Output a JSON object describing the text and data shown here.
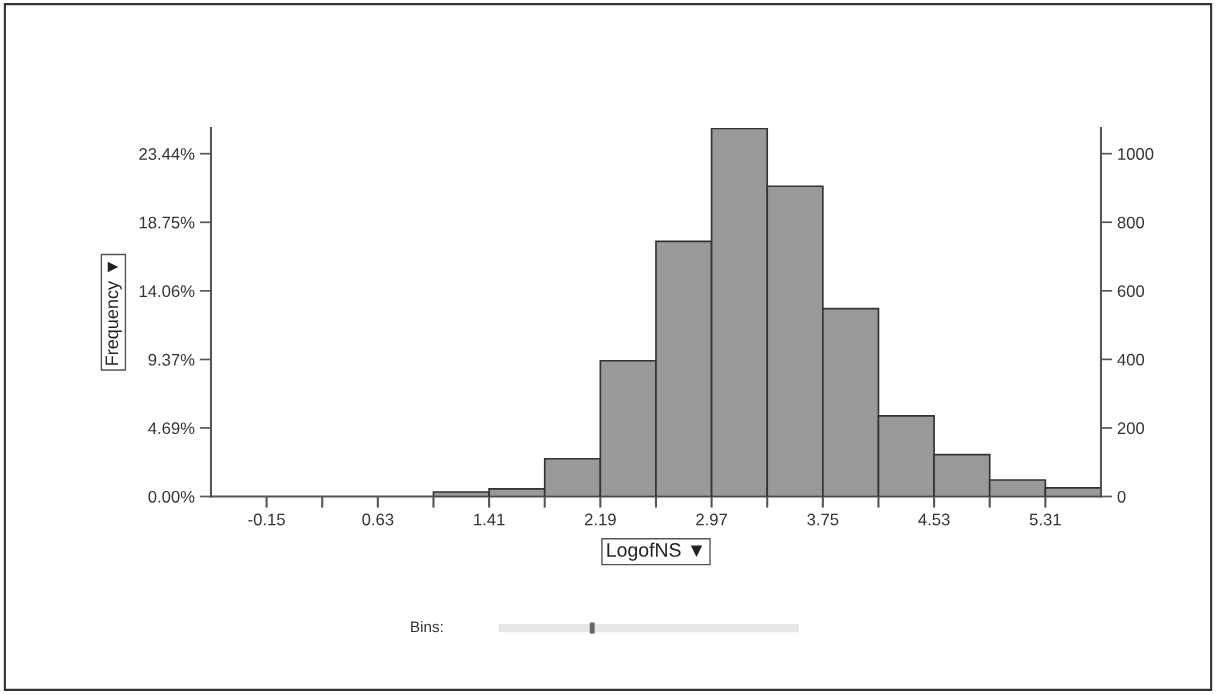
{
  "chart_data": {
    "type": "histogram",
    "xlabel": "LogofNS ▼",
    "ylabel": "Frequency ▼",
    "bins": [
      1.02,
      1.41,
      1.8,
      2.19,
      2.58,
      2.97,
      3.36,
      3.75,
      4.14,
      4.53,
      4.92,
      5.31,
      5.7
    ],
    "series": [
      {
        "axis": "y2",
        "color": "#999999",
        "values": [
          13,
          22,
          110,
          396,
          744,
          1074,
          905,
          548,
          235,
          122,
          48,
          25
        ]
      }
    ],
    "xlim": [
      -0.54,
      5.7
    ],
    "xticks": [
      -0.15,
      {
        "value": 0.24,
        "label": null
      },
      0.63,
      {
        "value": 1.02,
        "label": null
      },
      1.41,
      {
        "value": 1.8,
        "label": null
      },
      2.19,
      {
        "value": 2.58,
        "label": null
      },
      2.97,
      {
        "value": 3.36,
        "label": null
      },
      3.75,
      {
        "value": 4.14,
        "label": null
      },
      4.53,
      {
        "value": 4.92,
        "label": null
      },
      5.31
    ],
    "ylim": [
      0,
      25.2
    ],
    "yticks": [
      {
        "value": 0,
        "label": "0.00%"
      },
      {
        "value": 4.69,
        "label": "4.69%"
      },
      {
        "value": 9.37,
        "label": "9.37%"
      },
      {
        "value": 14.06,
        "label": "14.06%"
      },
      {
        "value": 18.75,
        "label": "18.75%"
      },
      {
        "value": 23.44,
        "label": "23.44%"
      }
    ],
    "y2lim": [
      0,
      1075
    ],
    "y2ticks": [
      0,
      200,
      400,
      600,
      800,
      1000
    ],
    "annotations": [
      "Bins:"
    ],
    "grid": false
  }
}
